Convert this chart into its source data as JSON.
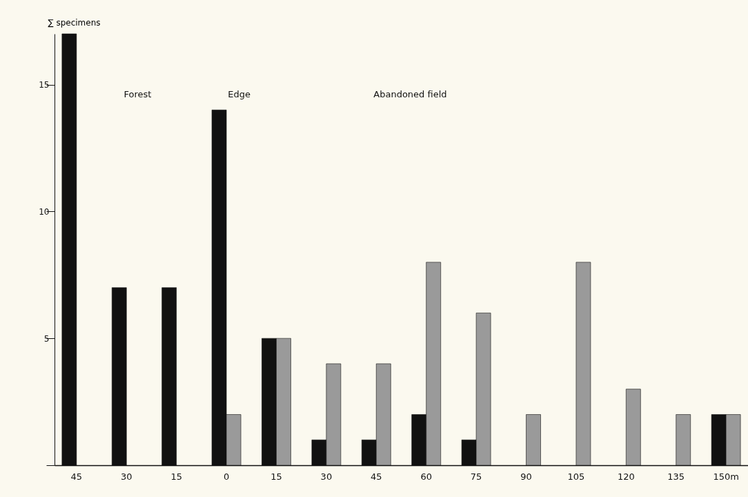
{
  "chart_data": {
    "type": "bar",
    "ylabel": "∑ specimens",
    "categories": [
      "45",
      "30",
      "15",
      "0",
      "15",
      "30",
      "45",
      "60",
      "75",
      "90",
      "105",
      "120",
      "135",
      "150m"
    ],
    "series": [
      {
        "color": "#111111",
        "values": [
          17,
          7,
          7,
          14,
          5,
          1,
          1,
          2,
          1,
          null,
          null,
          null,
          null,
          2
        ]
      },
      {
        "color": "#9a9a9a",
        "values": [
          null,
          null,
          null,
          2,
          5,
          4,
          4,
          8,
          6,
          2,
          8,
          3,
          2,
          2
        ]
      }
    ],
    "ylim": [
      0,
      17
    ],
    "yticks": [
      {
        "value": 0,
        "label": null
      },
      5,
      10,
      15
    ],
    "annotations": [
      "Forest",
      "Edge",
      "Abandoned field"
    ],
    "grid": false,
    "legend": false
  }
}
